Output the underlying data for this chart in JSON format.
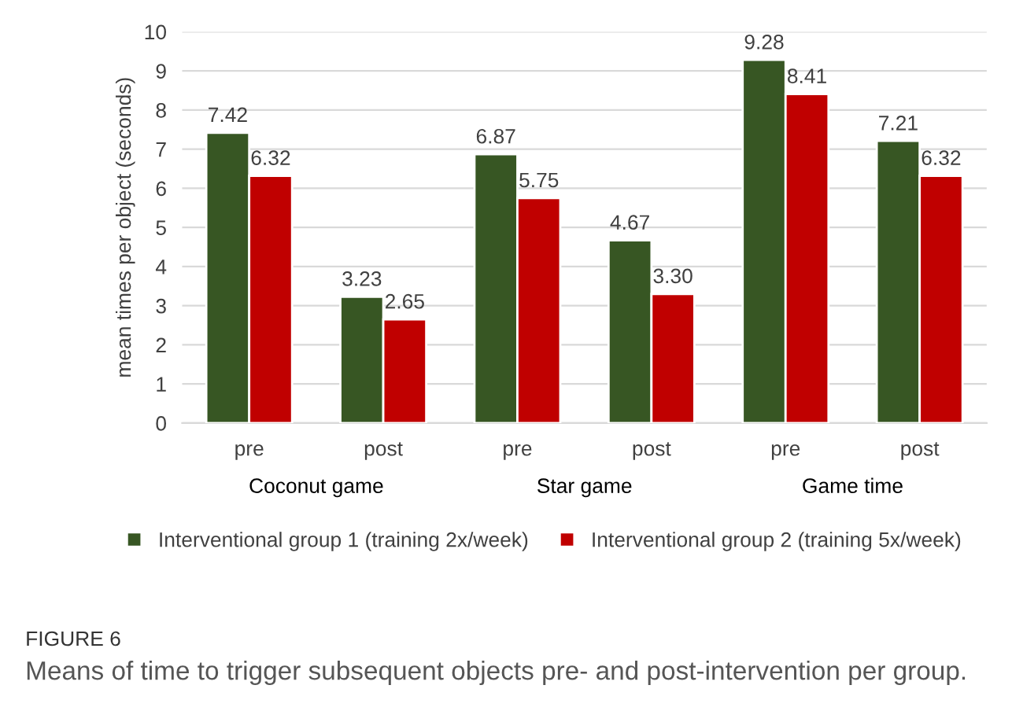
{
  "chart_data": {
    "type": "bar",
    "title": "FIGURE 6",
    "subtitle": "Means of time to trigger subsequent objects pre- and post-intervention per group.",
    "ylabel": "mean times per object (seconds)",
    "categories": [
      "pre",
      "post",
      "pre",
      "post",
      "pre",
      "post"
    ],
    "annotations": [
      "Coconut game",
      "Star game",
      "Game time"
    ],
    "series": [
      {
        "name": "Interventional group 1 (training 2x/week)",
        "color": "#375623",
        "values": [
          7.42,
          3.23,
          6.87,
          4.67,
          9.28,
          7.21
        ],
        "value_labels": [
          "7.42",
          "3.23",
          "6.87",
          "4.67",
          "9.28",
          "7.21"
        ]
      },
      {
        "name": "Interventional group 2 (training 5x/week)",
        "color": "#c00000",
        "values": [
          6.32,
          2.65,
          5.75,
          3.3,
          8.41,
          6.32
        ],
        "value_labels": [
          "6.32",
          "2.65",
          "5.75",
          "3.30",
          "8.41",
          "6.32"
        ]
      }
    ],
    "ylim": [
      0,
      10
    ],
    "yticks": [
      0,
      1,
      2,
      3,
      4,
      5,
      6,
      7,
      8,
      9,
      10
    ],
    "grid": "y",
    "legend": "bottom"
  }
}
